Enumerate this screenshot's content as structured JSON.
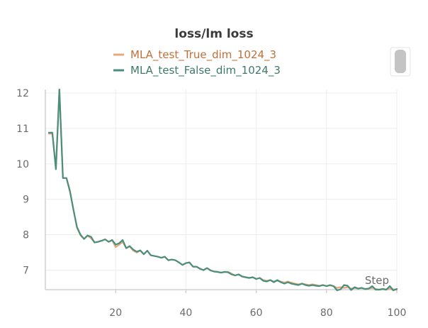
{
  "chart_data": {
    "type": "line",
    "title": "loss/lm loss",
    "xlabel": "Step",
    "ylabel": "",
    "xlim": [
      0,
      100
    ],
    "ylim": [
      6.45,
      12.1
    ],
    "x_ticks": [
      20,
      40,
      60,
      80,
      100
    ],
    "y_ticks": [
      7,
      8,
      9,
      10,
      11,
      12
    ],
    "grid": true,
    "legend_position": "top-center",
    "series": [
      {
        "name": "MLA_test_True_dim_1024_3",
        "color": "#e8a87c",
        "text_color": "#c0703a",
        "x": [
          1,
          2,
          3,
          4,
          5,
          6,
          7,
          8,
          9,
          10,
          11,
          12,
          13,
          14,
          15,
          16,
          17,
          18,
          19,
          20,
          21,
          22,
          23,
          24,
          25,
          26,
          27,
          28,
          29,
          30,
          31,
          32,
          33,
          34,
          35,
          36,
          37,
          38,
          39,
          40,
          41,
          42,
          43,
          44,
          45,
          46,
          47,
          48,
          49,
          50,
          51,
          52,
          53,
          54,
          55,
          56,
          57,
          58,
          59,
          60,
          61,
          62,
          63,
          64,
          65,
          66,
          67,
          68,
          69,
          70,
          71,
          72,
          73,
          74,
          75,
          76,
          77,
          78,
          79,
          80,
          81,
          82,
          83,
          84,
          85,
          86,
          87,
          88,
          89,
          90,
          91,
          92,
          93,
          94,
          95,
          96,
          97,
          98,
          99,
          100
        ],
        "values": [
          10.85,
          10.85,
          9.85,
          12.1,
          9.6,
          9.6,
          9.25,
          8.7,
          8.2,
          7.98,
          7.88,
          7.97,
          7.9,
          7.78,
          7.8,
          7.83,
          7.87,
          7.8,
          7.85,
          7.65,
          7.72,
          7.8,
          7.62,
          7.67,
          7.55,
          7.5,
          7.55,
          7.45,
          7.55,
          7.42,
          7.4,
          7.38,
          7.35,
          7.38,
          7.28,
          7.3,
          7.28,
          7.22,
          7.15,
          7.2,
          7.22,
          7.1,
          7.1,
          7.05,
          7.0,
          7.06,
          7.0,
          6.96,
          6.95,
          6.93,
          6.95,
          6.95,
          6.9,
          6.85,
          6.88,
          6.82,
          6.8,
          6.78,
          6.8,
          6.75,
          6.78,
          6.72,
          6.7,
          6.72,
          6.68,
          6.7,
          6.68,
          6.65,
          6.68,
          6.65,
          6.62,
          6.6,
          6.62,
          6.6,
          6.58,
          6.6,
          6.58,
          6.56,
          6.58,
          6.55,
          6.57,
          6.55,
          6.5,
          6.52,
          6.5,
          6.52,
          6.48,
          6.5,
          6.48,
          6.5,
          6.46,
          6.48,
          6.5,
          6.47,
          6.45,
          6.47,
          6.45,
          6.48,
          6.46,
          6.45
        ]
      },
      {
        "name": "MLA_test_False_dim_1024_3",
        "color": "#4a8f7c",
        "text_color": "#3d7a6a",
        "x": [
          1,
          2,
          3,
          4,
          5,
          6,
          7,
          8,
          9,
          10,
          11,
          12,
          13,
          14,
          15,
          16,
          17,
          18,
          19,
          20,
          21,
          22,
          23,
          24,
          25,
          26,
          27,
          28,
          29,
          30,
          31,
          32,
          33,
          34,
          35,
          36,
          37,
          38,
          39,
          40,
          41,
          42,
          43,
          44,
          45,
          46,
          47,
          48,
          49,
          50,
          51,
          52,
          53,
          54,
          55,
          56,
          57,
          58,
          59,
          60,
          61,
          62,
          63,
          64,
          65,
          66,
          67,
          68,
          69,
          70,
          71,
          72,
          73,
          74,
          75,
          76,
          77,
          78,
          79,
          80,
          81,
          82,
          83,
          84,
          85,
          86,
          87,
          88,
          89,
          90,
          91,
          92,
          93,
          94,
          95,
          96,
          97,
          98,
          99,
          100
        ],
        "values": [
          10.88,
          10.88,
          9.85,
          12.1,
          9.6,
          9.6,
          9.22,
          8.7,
          8.22,
          8.0,
          7.88,
          7.98,
          7.94,
          7.78,
          7.8,
          7.83,
          7.87,
          7.8,
          7.85,
          7.72,
          7.76,
          7.85,
          7.62,
          7.68,
          7.58,
          7.52,
          7.56,
          7.45,
          7.55,
          7.42,
          7.4,
          7.38,
          7.35,
          7.38,
          7.28,
          7.3,
          7.28,
          7.22,
          7.15,
          7.2,
          7.22,
          7.1,
          7.1,
          7.04,
          7.0,
          7.06,
          6.99,
          6.96,
          6.95,
          6.93,
          6.95,
          6.94,
          6.88,
          6.85,
          6.88,
          6.82,
          6.8,
          6.78,
          6.8,
          6.75,
          6.78,
          6.7,
          6.68,
          6.72,
          6.66,
          6.72,
          6.66,
          6.62,
          6.66,
          6.62,
          6.6,
          6.58,
          6.62,
          6.58,
          6.56,
          6.58,
          6.56,
          6.55,
          6.58,
          6.55,
          6.58,
          6.55,
          6.43,
          6.46,
          6.58,
          6.56,
          6.44,
          6.52,
          6.48,
          6.5,
          6.47,
          6.48,
          6.55,
          6.45,
          6.45,
          6.47,
          6.45,
          6.55,
          6.43,
          6.47
        ]
      }
    ]
  },
  "scrollbar": {
    "color": "#c4c4c4"
  }
}
